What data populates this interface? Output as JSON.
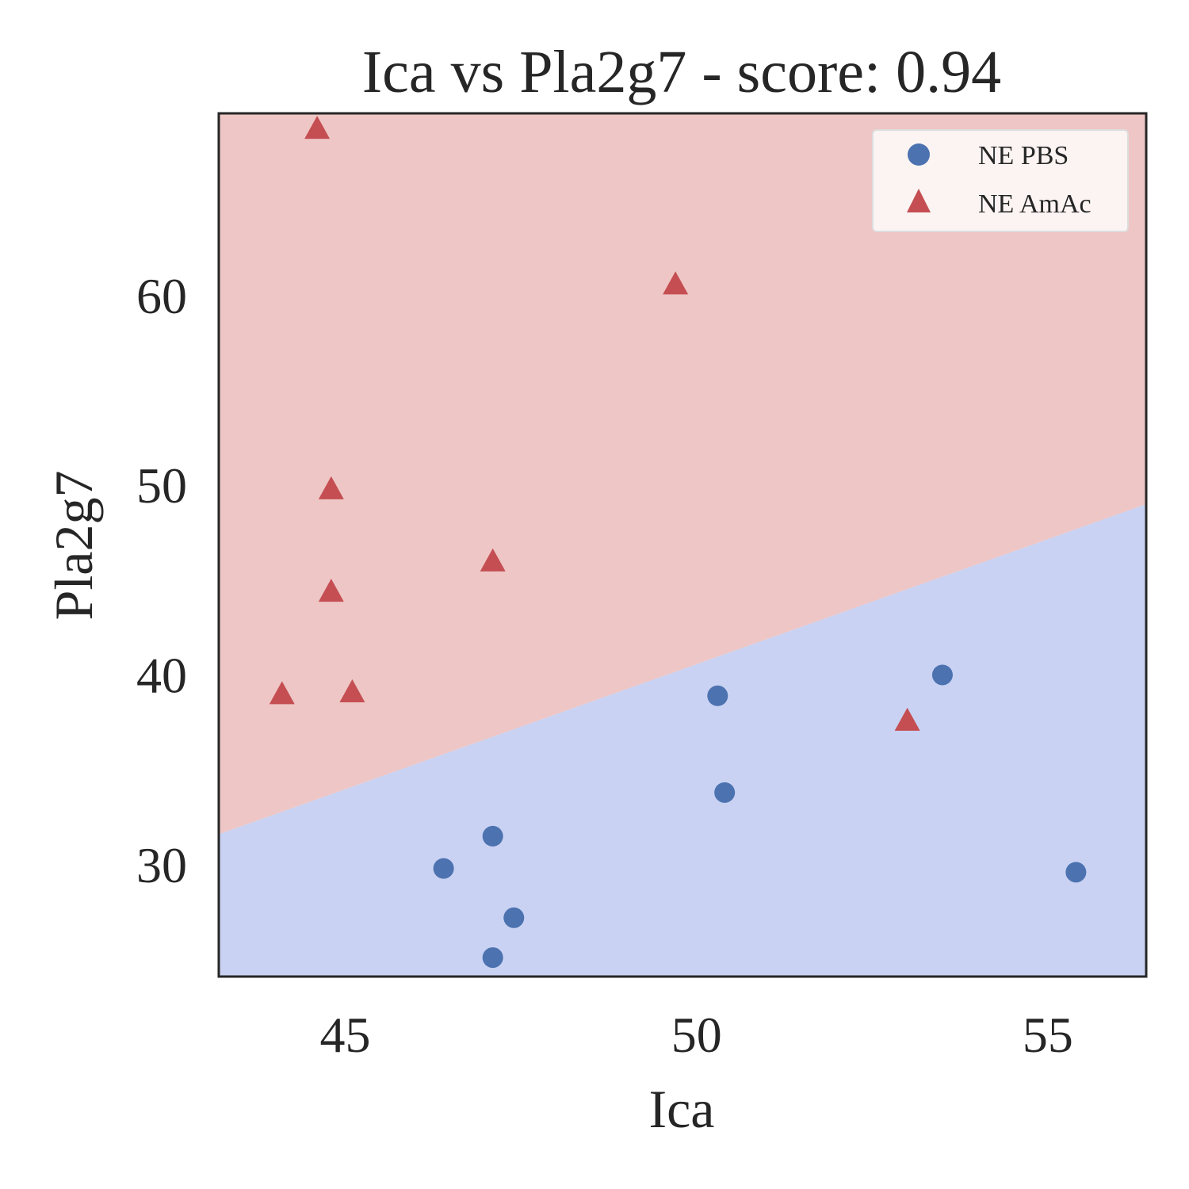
{
  "chart_data": {
    "type": "scatter",
    "title": "Ica vs Pla2g7 - score: 0.94",
    "xlabel": "Ica",
    "ylabel": "Pla2g7",
    "xlim": [
      43.2,
      56.4
    ],
    "ylim": [
      24.1,
      69.6
    ],
    "xticks": [
      45,
      50,
      55
    ],
    "yticks": [
      30,
      40,
      50,
      60
    ],
    "grid": false,
    "legend_position": "top-right",
    "decision_boundary": {
      "points": [
        [
          43.2,
          31.6
        ],
        [
          56.4,
          49.0
        ]
      ],
      "region_above": "NE AmAc",
      "region_below": "NE PBS",
      "color_above": "#eec6c5",
      "color_below": "#c9d2f2"
    },
    "series": [
      {
        "name": "NE PBS",
        "marker": "circle",
        "color": "#4c72b0",
        "points": [
          [
            46.4,
            29.8
          ],
          [
            47.1,
            31.5
          ],
          [
            47.4,
            27.2
          ],
          [
            47.1,
            25.1
          ],
          [
            50.3,
            38.9
          ],
          [
            50.4,
            33.8
          ],
          [
            53.5,
            40.0
          ],
          [
            55.4,
            29.6
          ]
        ]
      },
      {
        "name": "NE AmAc",
        "marker": "triangle",
        "color": "#c44e52",
        "points": [
          [
            44.6,
            68.8
          ],
          [
            44.8,
            49.8
          ],
          [
            44.8,
            44.4
          ],
          [
            44.1,
            39.0
          ],
          [
            45.1,
            39.1
          ],
          [
            47.1,
            46.0
          ],
          [
            49.7,
            60.6
          ],
          [
            53.0,
            37.6
          ]
        ]
      }
    ]
  }
}
